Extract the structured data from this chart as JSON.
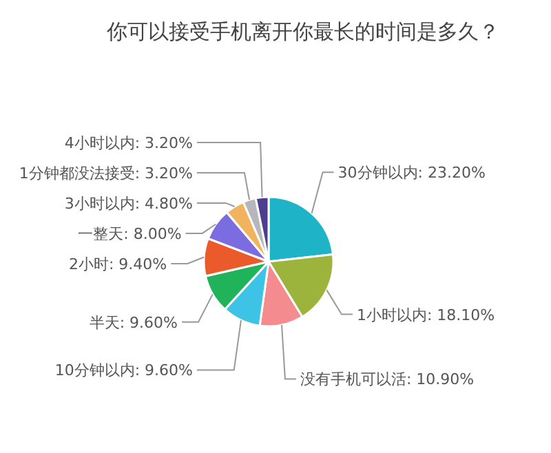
{
  "chart_data": {
    "type": "pie",
    "title": "你可以接受手机离开你最长的时间是多久？",
    "categories": [
      "30分钟以内",
      "1小时以内",
      "没有手机可以活",
      "10分钟以内",
      "半天",
      "2小时",
      "一整天",
      "3小时以内",
      "1分钟都没法接受",
      "4小时以内"
    ],
    "values": [
      23.2,
      18.1,
      10.9,
      9.6,
      9.6,
      9.4,
      8.0,
      4.8,
      3.2,
      3.2
    ],
    "value_labels": [
      "23.20%",
      "18.10%",
      "10.90%",
      "9.60%",
      "9.60%",
      "9.40%",
      "8.00%",
      "4.80%",
      "3.20%",
      "3.20%"
    ],
    "colors": [
      "#1fb3c8",
      "#9cb43c",
      "#f48c8f",
      "#3cc3e6",
      "#20b35a",
      "#ea5a2b",
      "#7b6de0",
      "#f2b35e",
      "#b6b6bc",
      "#4f3d8f"
    ]
  }
}
